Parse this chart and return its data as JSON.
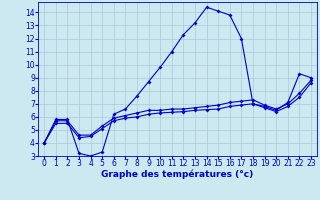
{
  "xlabel": "Graphe des températures (°c)",
  "background_color": "#cce8f0",
  "grid_color": "#b0c8d8",
  "line_color": "#0000cc",
  "xlim": [
    -0.5,
    23.5
  ],
  "ylim": [
    3,
    14.8
  ],
  "xticks": [
    0,
    1,
    2,
    3,
    4,
    5,
    6,
    7,
    8,
    9,
    10,
    11,
    12,
    13,
    14,
    15,
    16,
    17,
    18,
    19,
    20,
    21,
    22,
    23
  ],
  "yticks": [
    3,
    4,
    5,
    6,
    7,
    8,
    9,
    10,
    11,
    12,
    13,
    14
  ],
  "curve1_x": [
    0,
    1,
    2,
    3,
    4,
    5,
    6,
    7,
    8,
    9,
    10,
    11,
    12,
    13,
    14,
    15,
    16,
    17,
    18,
    19,
    20,
    21,
    22,
    23
  ],
  "curve1_y": [
    4.0,
    5.8,
    5.8,
    3.2,
    3.0,
    3.3,
    6.2,
    6.6,
    7.6,
    8.7,
    9.8,
    11.0,
    12.3,
    13.2,
    14.4,
    14.1,
    13.8,
    12.0,
    7.0,
    6.8,
    6.5,
    7.1,
    9.3,
    9.0
  ],
  "curve2_x": [
    0,
    1,
    2,
    3,
    4,
    5,
    6,
    7,
    8,
    9,
    10,
    11,
    12,
    13,
    14,
    15,
    16,
    17,
    18,
    19,
    20,
    21,
    22,
    23
  ],
  "curve2_y": [
    4.0,
    5.7,
    5.7,
    4.6,
    4.6,
    5.3,
    5.9,
    6.1,
    6.3,
    6.5,
    6.5,
    6.6,
    6.6,
    6.7,
    6.8,
    6.9,
    7.1,
    7.2,
    7.3,
    6.9,
    6.6,
    7.0,
    7.8,
    8.8
  ],
  "curve3_x": [
    0,
    1,
    2,
    3,
    4,
    5,
    6,
    7,
    8,
    9,
    10,
    11,
    12,
    13,
    14,
    15,
    16,
    17,
    18,
    19,
    20,
    21,
    22,
    23
  ],
  "curve3_y": [
    4.0,
    5.5,
    5.5,
    4.4,
    4.5,
    5.1,
    5.7,
    5.9,
    6.0,
    6.2,
    6.3,
    6.35,
    6.4,
    6.5,
    6.55,
    6.6,
    6.8,
    6.9,
    7.0,
    6.7,
    6.4,
    6.8,
    7.5,
    8.6
  ],
  "marker_size": 2.0,
  "line_width": 0.8,
  "tick_fontsize": 5.5,
  "xlabel_fontsize": 6.5
}
